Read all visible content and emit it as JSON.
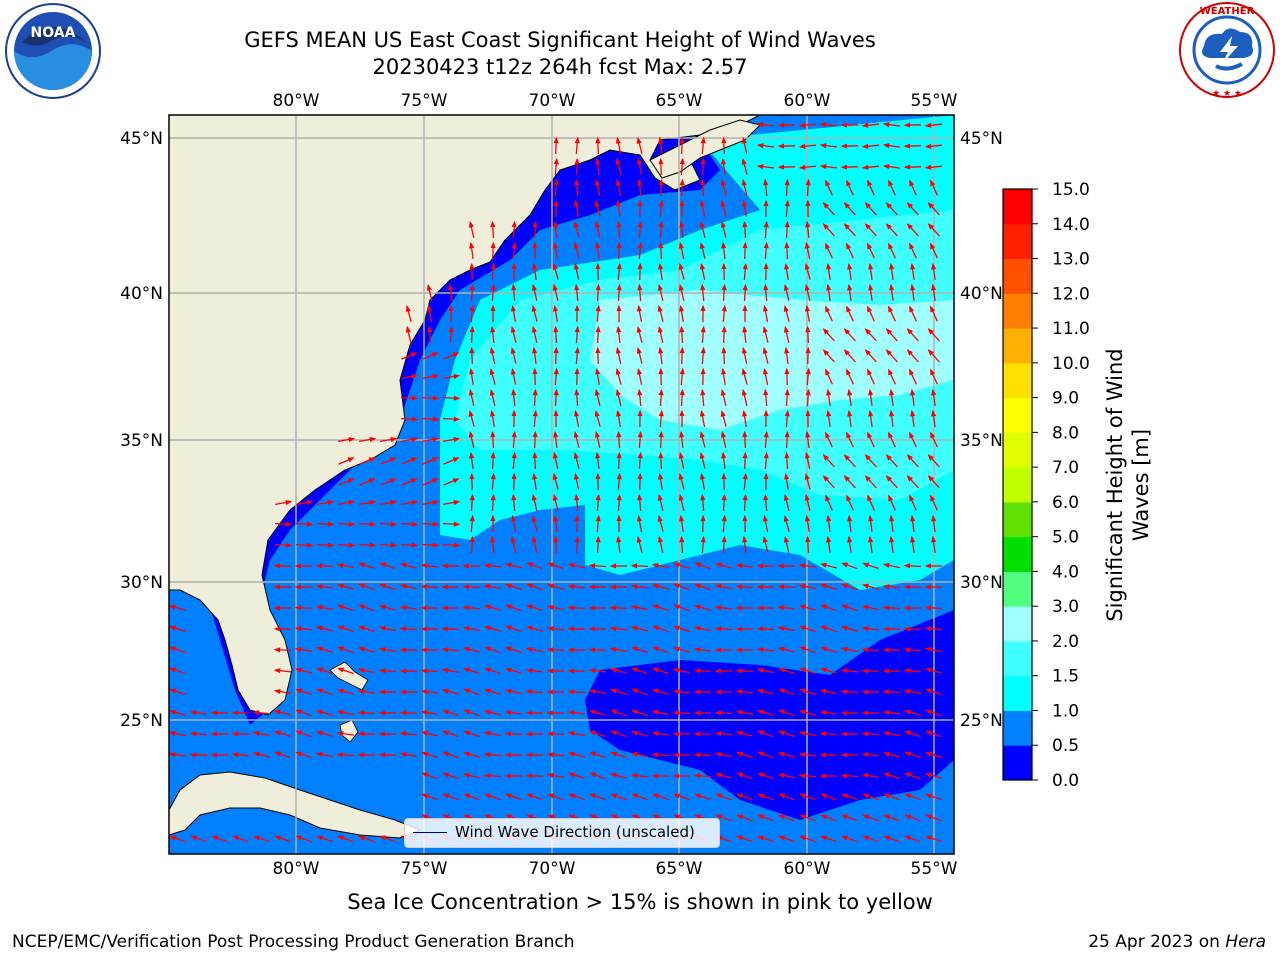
{
  "title_line1": "GEFS MEAN US East Coast Significant Height of Wind Waves",
  "title_line2": "20230423 t12z 264h fcst   Max: 2.57",
  "lon_labels": [
    "80°W",
    "75°W",
    "70°W",
    "65°W",
    "60°W",
    "55°W"
  ],
  "lat_labels": [
    "45°N",
    "40°N",
    "35°N",
    "30°N",
    "25°N"
  ],
  "colorbar": {
    "label": "Significant Height of Wind Waves [m]",
    "ticks": [
      "15.0",
      "14.0",
      "13.0",
      "12.0",
      "11.0",
      "10.0",
      "9.0",
      "8.0",
      "7.0",
      "6.0",
      "5.0",
      "4.0",
      "3.0",
      "2.0",
      "1.5",
      "1.0",
      "0.5",
      "0.0"
    ],
    "colors": [
      "#0000ff",
      "#0080ff",
      "#00ffff",
      "#40ffff",
      "#a0ffff",
      "#50ff80",
      "#00e000",
      "#60e000",
      "#c0ff00",
      "#e0ff00",
      "#ffff00",
      "#ffe000",
      "#ffb000",
      "#ff8000",
      "#ff5000",
      "#ff2000",
      "#ff0000"
    ]
  },
  "legend_label": "Wind Wave Direction (unscaled)",
  "caption": "Sea Ice Concentration > 15% is shown in pink to yellow",
  "footer_left": "NCEP/EMC/Verification Post Processing Product Generation Branch",
  "footer_date": "25 Apr 2023 on ",
  "footer_machine": "Hera",
  "logos": {
    "left": "NOAA",
    "right_ring": "NATIONAL WEATHER SERVICE"
  },
  "colors": {
    "land": "#efeedb",
    "sea_0_05": "#0000ff",
    "sea_05_10": "#0080ff",
    "sea_10_15": "#00ffff",
    "sea_15_20": "#40ffff",
    "sea_20_30": "#a0ffff",
    "arrow": "#ff0000"
  }
}
